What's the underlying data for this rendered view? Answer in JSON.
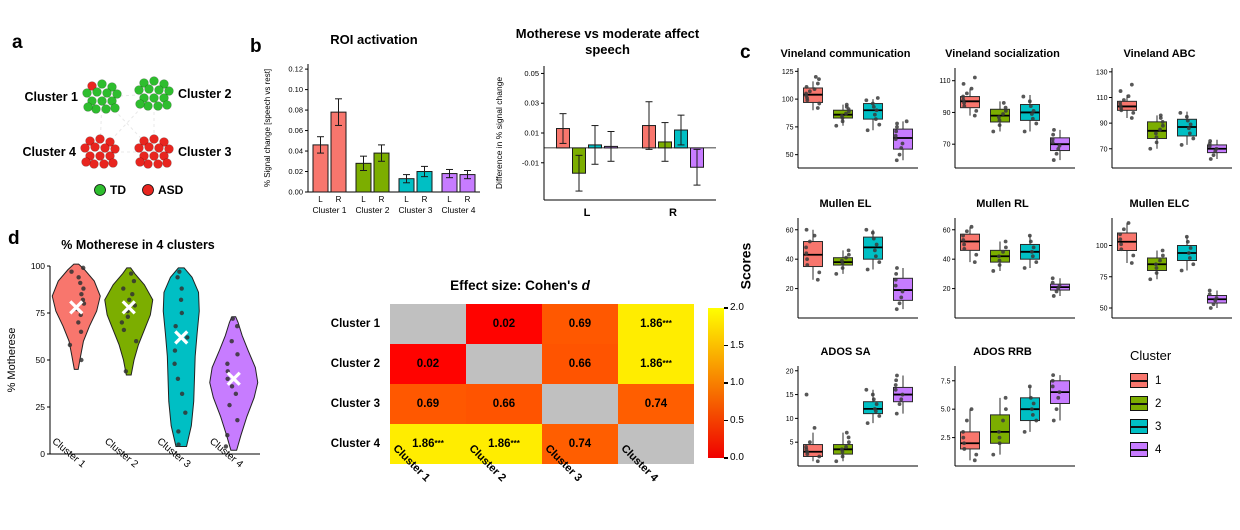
{
  "figure": {
    "panel_labels": {
      "a": "a",
      "b": "b",
      "c": "c",
      "d": "d"
    }
  },
  "panel_a": {
    "cluster_labels": [
      "Cluster 1",
      "Cluster 2",
      "Cluster 3",
      "Cluster 4"
    ],
    "legend": [
      {
        "label": "TD",
        "color": "#2EBD2E"
      },
      {
        "label": "ASD",
        "color": "#E8251F"
      }
    ]
  },
  "chart_data": {
    "cluster_colors": [
      "#F8766D",
      "#7CAE00",
      "#00BFC4",
      "#C77CFF"
    ],
    "roi_activation": {
      "type": "bar",
      "title": "ROI activation",
      "ylabel": "% Signal change [speech vs rest]",
      "ylim": [
        0,
        0.125
      ],
      "yticks": [
        0,
        0.02,
        0.04,
        0.06,
        0.08,
        0.1,
        0.12
      ],
      "ytick_labels": [
        "0.00",
        "0.02",
        "0.04",
        "0.06",
        "0.08",
        "0.10",
        "0.12"
      ],
      "groups": [
        "Cluster 1",
        "Cluster 2",
        "Cluster 3",
        "Cluster 4"
      ],
      "bar_labels": [
        "L",
        "R"
      ],
      "values": [
        [
          0.046,
          0.078
        ],
        [
          0.028,
          0.038
        ],
        [
          0.013,
          0.02
        ],
        [
          0.018,
          0.017
        ]
      ],
      "errors": [
        [
          0.008,
          0.013
        ],
        [
          0.007,
          0.008
        ],
        [
          0.004,
          0.005
        ],
        [
          0.004,
          0.004
        ]
      ]
    },
    "motherese_diff": {
      "type": "bar",
      "title": "Motherese vs moderate affect speech",
      "ylabel": "Difference in % signal change",
      "ylim": [
        -0.035,
        0.055
      ],
      "yticks": [
        -0.01,
        0.01,
        0.03,
        0.05
      ],
      "ytick_labels": [
        "-0.01",
        "0.01",
        "0.03",
        "0.05"
      ],
      "groups": [
        "L",
        "R"
      ],
      "series_labels": [
        "Cluster 1",
        "Cluster 2",
        "Cluster 3",
        "Cluster 4"
      ],
      "values": [
        [
          0.013,
          -0.017,
          0.002,
          0.001
        ],
        [
          0.015,
          0.004,
          0.012,
          -0.013
        ]
      ],
      "errors": [
        [
          0.01,
          0.012,
          0.013,
          0.01
        ],
        [
          0.016,
          0.013,
          0.01,
          0.012
        ]
      ]
    },
    "motherese_violin": {
      "type": "violin",
      "title": "% Motherese in 4 clusters",
      "ylabel": "% Motherese",
      "ylim": [
        0,
        100
      ],
      "yticks": [
        0,
        25,
        50,
        75,
        100
      ],
      "categories": [
        "Cluster 1",
        "Cluster 2",
        "Cluster 3",
        "Cluster 4"
      ],
      "means": [
        78,
        78,
        62,
        40
      ],
      "profiles": [
        [
          [
            45,
            0.08
          ],
          [
            52,
            0.18
          ],
          [
            60,
            0.3
          ],
          [
            68,
            0.55
          ],
          [
            76,
            0.85
          ],
          [
            84,
            1.0
          ],
          [
            92,
            0.75
          ],
          [
            98,
            0.35
          ],
          [
            101,
            0.1
          ]
        ],
        [
          [
            42,
            0.1
          ],
          [
            50,
            0.22
          ],
          [
            58,
            0.4
          ],
          [
            66,
            0.65
          ],
          [
            74,
            0.9
          ],
          [
            82,
            1.0
          ],
          [
            90,
            0.65
          ],
          [
            96,
            0.25
          ],
          [
            99,
            0.08
          ]
        ],
        [
          [
            4,
            0.22
          ],
          [
            15,
            0.42
          ],
          [
            28,
            0.52
          ],
          [
            40,
            0.55
          ],
          [
            52,
            0.58
          ],
          [
            64,
            0.66
          ],
          [
            76,
            0.75
          ],
          [
            86,
            0.72
          ],
          [
            94,
            0.45
          ],
          [
            99,
            0.12
          ]
        ],
        [
          [
            2,
            0.12
          ],
          [
            10,
            0.3
          ],
          [
            20,
            0.55
          ],
          [
            30,
            0.85
          ],
          [
            38,
            1.0
          ],
          [
            46,
            0.9
          ],
          [
            55,
            0.6
          ],
          [
            63,
            0.35
          ],
          [
            70,
            0.18
          ],
          [
            73,
            0.08
          ]
        ]
      ],
      "points": [
        [
          50,
          58,
          65,
          70,
          74,
          77,
          80,
          82,
          85,
          88,
          91,
          94,
          97,
          99
        ],
        [
          44,
          60,
          66,
          70,
          73,
          76,
          79,
          82,
          85,
          88,
          92,
          96
        ],
        [
          5,
          12,
          22,
          32,
          40,
          48,
          55,
          62,
          68,
          75,
          82,
          88,
          94,
          97
        ],
        [
          4,
          10,
          18,
          26,
          32,
          36,
          40,
          44,
          48,
          53,
          60,
          68,
          72
        ]
      ]
    },
    "cohens_d_heatmap": {
      "type": "heatmap",
      "title_prefix": "Effect size: Cohen's ",
      "title_italic": "d",
      "rows": [
        "Cluster 1",
        "Cluster 2",
        "Cluster 3",
        "Cluster 4"
      ],
      "cols": [
        "Cluster 1",
        "Cluster 2",
        "Cluster 3",
        "Cluster 4"
      ],
      "values": [
        [
          null,
          0.02,
          0.69,
          1.86
        ],
        [
          0.02,
          null,
          0.66,
          1.86
        ],
        [
          0.69,
          0.66,
          null,
          0.74
        ],
        [
          1.86,
          1.86,
          0.74,
          null
        ]
      ],
      "labels": [
        [
          "",
          "0.02",
          "0.69",
          "1.86***"
        ],
        [
          "0.02",
          "",
          "0.66",
          "1.86***"
        ],
        [
          "0.69",
          "0.66",
          "",
          "0.74"
        ],
        [
          "1.86***",
          "1.86***",
          "0.74",
          ""
        ]
      ],
      "diag_color": "#c0c0c0",
      "colorbar": {
        "min": 0,
        "max": 2,
        "ticks": [
          2.0,
          1.5,
          1.0,
          0.5,
          0.0
        ]
      }
    },
    "scores_axis_label": "Scores",
    "cluster_legend": {
      "title": "Cluster",
      "items": [
        "1",
        "2",
        "3",
        "4"
      ]
    },
    "boxplots": [
      {
        "type": "box",
        "title": "Vineland communication",
        "ylim": [
          38,
          128
        ],
        "yticks": [
          50,
          75,
          100,
          125
        ],
        "boxes": [
          {
            "lo": 90,
            "q1": 97,
            "med": 104,
            "q3": 110,
            "hi": 116
          },
          {
            "lo": 76,
            "q1": 83,
            "med": 86,
            "q3": 90,
            "hi": 95
          },
          {
            "lo": 72,
            "q1": 82,
            "med": 90,
            "q3": 96,
            "hi": 100
          },
          {
            "lo": 45,
            "q1": 55,
            "med": 65,
            "q3": 73,
            "hi": 80
          }
        ],
        "points": [
          [
            92,
            96,
            99,
            101,
            103,
            105,
            107,
            109,
            111,
            114,
            118,
            120
          ],
          [
            76,
            80,
            83,
            85,
            87,
            89,
            91,
            93,
            95
          ],
          [
            72,
            77,
            82,
            86,
            90,
            93,
            96,
            99,
            101
          ],
          [
            45,
            50,
            56,
            60,
            64,
            67,
            71,
            75,
            78,
            80
          ]
        ]
      },
      {
        "type": "box",
        "title": "Vineland socialization",
        "ylim": [
          55,
          118
        ],
        "yticks": [
          70,
          90,
          110
        ],
        "boxes": [
          {
            "lo": 88,
            "q1": 93,
            "med": 97,
            "q3": 100,
            "hi": 105
          },
          {
            "lo": 78,
            "q1": 84,
            "med": 88,
            "q3": 92,
            "hi": 97
          },
          {
            "lo": 78,
            "q1": 85,
            "med": 90,
            "q3": 95,
            "hi": 101
          },
          {
            "lo": 60,
            "q1": 66,
            "med": 70,
            "q3": 74,
            "hi": 79
          }
        ],
        "points": [
          [
            88,
            91,
            94,
            96,
            98,
            100,
            102,
            105,
            108,
            112
          ],
          [
            78,
            82,
            85,
            87,
            89,
            91,
            93,
            96
          ],
          [
            78,
            83,
            86,
            89,
            91,
            94,
            97,
            100
          ],
          [
            60,
            64,
            67,
            69,
            71,
            73,
            76,
            79
          ]
        ]
      },
      {
        "type": "box",
        "title": "Vineland ABC",
        "ylim": [
          55,
          133
        ],
        "yticks": [
          70,
          90,
          110,
          130
        ],
        "boxes": [
          {
            "lo": 94,
            "q1": 100,
            "med": 103,
            "q3": 107,
            "hi": 112
          },
          {
            "lo": 70,
            "q1": 78,
            "med": 84,
            "q3": 91,
            "hi": 96
          },
          {
            "lo": 73,
            "q1": 80,
            "med": 87,
            "q3": 93,
            "hi": 99
          },
          {
            "lo": 62,
            "q1": 67,
            "med": 70,
            "q3": 73,
            "hi": 77
          }
        ],
        "points": [
          [
            94,
            98,
            100,
            102,
            104,
            106,
            108,
            111,
            115,
            120
          ],
          [
            70,
            75,
            79,
            82,
            85,
            88,
            91,
            94,
            96
          ],
          [
            73,
            78,
            82,
            86,
            89,
            92,
            95,
            98
          ],
          [
            62,
            65,
            68,
            70,
            72,
            74,
            76
          ]
        ]
      },
      {
        "type": "box",
        "title": "Mullen EL",
        "ylim": [
          0,
          68
        ],
        "yticks": [
          20,
          40,
          60
        ],
        "boxes": [
          {
            "lo": 26,
            "q1": 35,
            "med": 43,
            "q3": 52,
            "hi": 60
          },
          {
            "lo": 30,
            "q1": 36,
            "med": 38,
            "q3": 41,
            "hi": 46
          },
          {
            "lo": 33,
            "q1": 40,
            "med": 48,
            "q3": 55,
            "hi": 60
          },
          {
            "lo": 6,
            "q1": 12,
            "med": 19,
            "q3": 27,
            "hi": 34
          }
        ],
        "points": [
          [
            26,
            31,
            36,
            40,
            44,
            48,
            52,
            56,
            60
          ],
          [
            30,
            34,
            37,
            39,
            41,
            43,
            46
          ],
          [
            33,
            38,
            42,
            46,
            50,
            54,
            58,
            60
          ],
          [
            6,
            10,
            14,
            18,
            22,
            26,
            30,
            34
          ]
        ]
      },
      {
        "type": "box",
        "title": "Mullen RL",
        "ylim": [
          0,
          68
        ],
        "yticks": [
          20,
          40,
          60
        ],
        "boxes": [
          {
            "lo": 38,
            "q1": 46,
            "med": 52,
            "q3": 57,
            "hi": 62
          },
          {
            "lo": 32,
            "q1": 38,
            "med": 42,
            "q3": 46,
            "hi": 52
          },
          {
            "lo": 34,
            "q1": 40,
            "med": 45,
            "q3": 50,
            "hi": 56
          },
          {
            "lo": 15,
            "q1": 19,
            "med": 21,
            "q3": 23,
            "hi": 27
          }
        ],
        "points": [
          [
            38,
            43,
            47,
            50,
            53,
            56,
            59,
            62
          ],
          [
            32,
            36,
            39,
            42,
            45,
            48,
            52
          ],
          [
            34,
            38,
            42,
            45,
            48,
            52,
            56
          ],
          [
            15,
            18,
            20,
            22,
            24,
            27
          ]
        ]
      },
      {
        "type": "box",
        "title": "Mullen ELC",
        "ylim": [
          42,
          122
        ],
        "yticks": [
          50,
          75,
          100
        ],
        "boxes": [
          {
            "lo": 86,
            "q1": 96,
            "med": 103,
            "q3": 110,
            "hi": 118
          },
          {
            "lo": 73,
            "q1": 80,
            "med": 85,
            "q3": 90,
            "hi": 96
          },
          {
            "lo": 80,
            "q1": 88,
            "med": 94,
            "q3": 100,
            "hi": 107
          },
          {
            "lo": 50,
            "q1": 54,
            "med": 57,
            "q3": 60,
            "hi": 64
          }
        ],
        "points": [
          [
            86,
            92,
            97,
            101,
            105,
            109,
            113,
            118
          ],
          [
            73,
            78,
            82,
            85,
            88,
            92,
            96
          ],
          [
            80,
            85,
            90,
            94,
            98,
            103,
            107
          ],
          [
            50,
            53,
            56,
            58,
            61,
            64
          ]
        ]
      },
      {
        "type": "box",
        "title": "ADOS SA",
        "ylim": [
          0,
          21
        ],
        "yticks": [
          5,
          10,
          15,
          20
        ],
        "boxes": [
          {
            "lo": 1,
            "q1": 2,
            "med": 3,
            "q3": 4.5,
            "hi": 7
          },
          {
            "lo": 1,
            "q1": 2.5,
            "med": 3.5,
            "q3": 4.5,
            "hi": 7
          },
          {
            "lo": 9,
            "q1": 11,
            "med": 12,
            "q3": 13.5,
            "hi": 16
          },
          {
            "lo": 11,
            "q1": 13.5,
            "med": 15,
            "q3": 16.5,
            "hi": 19
          }
        ],
        "points": [
          [
            1,
            2,
            2.5,
            3,
            3.5,
            4,
            5,
            8,
            15
          ],
          [
            1,
            2,
            3,
            3.5,
            4,
            5,
            6,
            7
          ],
          [
            9,
            10.5,
            11.5,
            12,
            13,
            14,
            15,
            16
          ],
          [
            11,
            13,
            14,
            15,
            16,
            17,
            18,
            19
          ]
        ]
      },
      {
        "type": "box",
        "title": "ADOS RRB",
        "ylim": [
          0,
          8.8
        ],
        "yticks": [
          2.5,
          5,
          7.5
        ],
        "ytick_labels": [
          "2.5",
          "5.0",
          "7.5"
        ],
        "boxes": [
          {
            "lo": 0.5,
            "q1": 1.5,
            "med": 2,
            "q3": 3,
            "hi": 5
          },
          {
            "lo": 1,
            "q1": 2,
            "med": 3,
            "q3": 4.5,
            "hi": 6
          },
          {
            "lo": 3,
            "q1": 4,
            "med": 5,
            "q3": 6,
            "hi": 7
          },
          {
            "lo": 4,
            "q1": 5.5,
            "med": 6.5,
            "q3": 7.5,
            "hi": 8
          }
        ],
        "points": [
          [
            0.5,
            1,
            1.5,
            2,
            2.5,
            3,
            4,
            5
          ],
          [
            1,
            2,
            2.5,
            3,
            4,
            5,
            6
          ],
          [
            3,
            4,
            4.5,
            5,
            5.5,
            6,
            7
          ],
          [
            4,
            5,
            6,
            6.5,
            7,
            7.5,
            8
          ]
        ]
      }
    ]
  }
}
